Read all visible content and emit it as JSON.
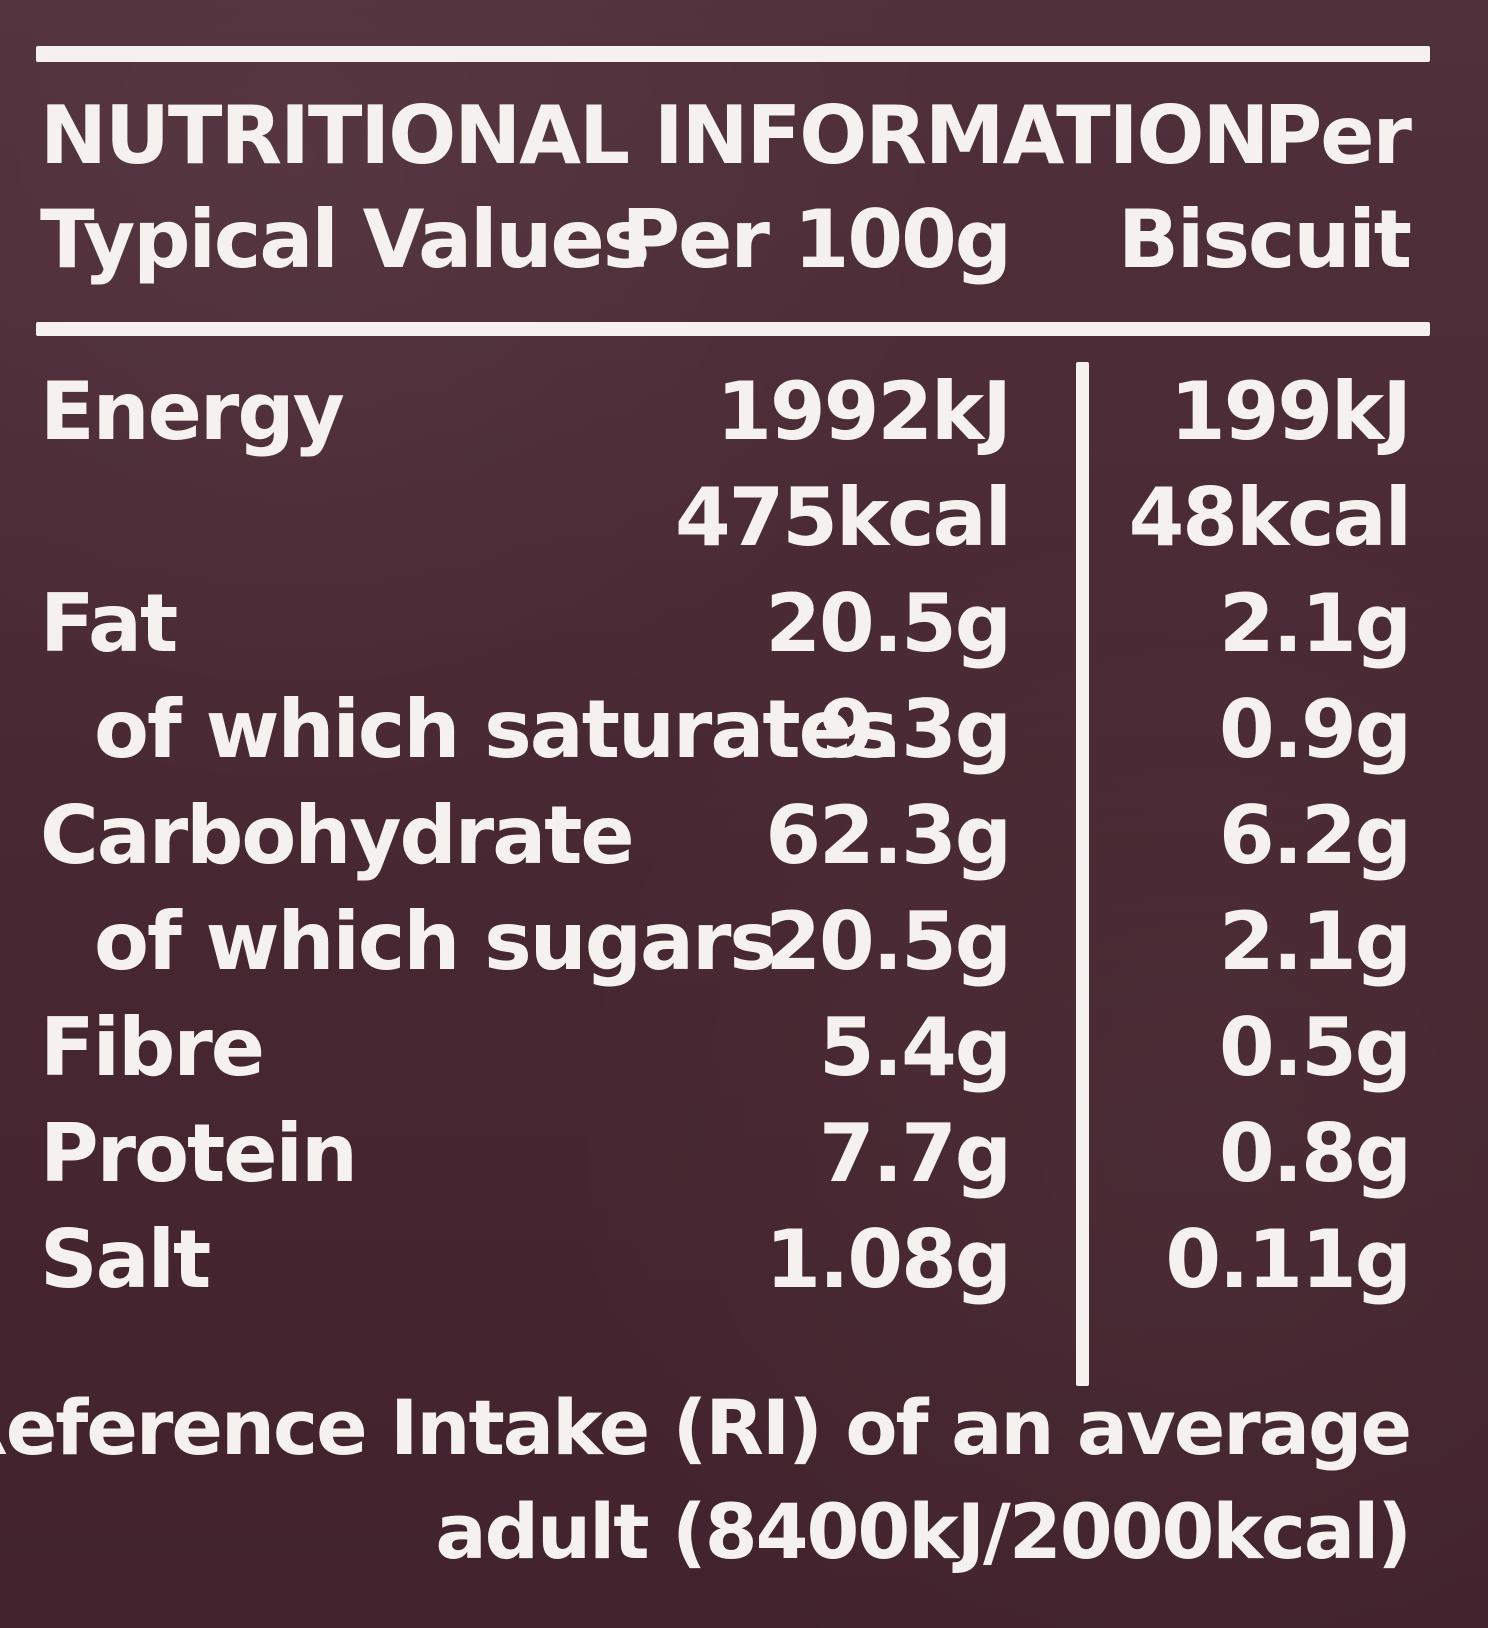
{
  "label": {
    "title": "NUTRITIONAL INFORMATION",
    "header_per": "Per",
    "header_typical": "Typical Values",
    "header_per100": "Per 100g",
    "header_biscuit": "Biscuit",
    "rows": [
      {
        "name": "Energy",
        "per100": "1992kJ",
        "biscuit": "199kJ"
      },
      {
        "name": "",
        "per100": "475kcal",
        "biscuit": "48kcal"
      },
      {
        "name": "Fat",
        "per100": "20.5g",
        "biscuit": "2.1g"
      },
      {
        "name": "of which saturates",
        "per100": "9.3g",
        "biscuit": "0.9g"
      },
      {
        "name": "Carbohydrate",
        "per100": "62.3g",
        "biscuit": "6.2g"
      },
      {
        "name": "of which sugars",
        "per100": "20.5g",
        "biscuit": "2.1g"
      },
      {
        "name": "Fibre",
        "per100": "5.4g",
        "biscuit": "0.5g"
      },
      {
        "name": "Protein",
        "per100": "7.7g",
        "biscuit": "0.8g"
      },
      {
        "name": "Salt",
        "per100": "1.08g",
        "biscuit": "0.11g"
      }
    ],
    "footer_line1": "Reference Intake (RI) of an average",
    "footer_line2": "adult (8400kJ/2000kcal)"
  }
}
